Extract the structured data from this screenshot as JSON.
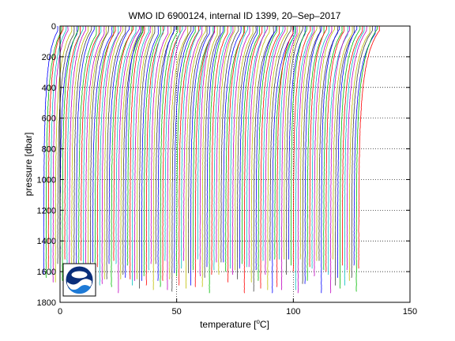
{
  "chart_data": {
    "type": "line",
    "title": "WMO ID 6900124, internal ID 1399, 20–Sep–2017",
    "xlabel_prefix": "temperature [",
    "xlabel_unit_sup": "o",
    "xlabel_suffix": "C]",
    "ylabel": "pressure [dbar]",
    "xlim": [
      0,
      150
    ],
    "ylim": [
      0,
      1800
    ],
    "y_reversed": true,
    "x_ticks": [
      0,
      50,
      100,
      150
    ],
    "y_ticks": [
      0,
      200,
      400,
      600,
      800,
      1000,
      1200,
      1400,
      1600,
      1800
    ],
    "grid": true,
    "profile_count": 136,
    "profile_spacing_degC": 1.0,
    "segment_breaks": [
      1,
      36,
      67,
      101
    ],
    "deep_temperature_degC": 2.0,
    "surface_temperature_range_degC": [
      8.0,
      10.5
    ],
    "profile_colors": [
      "#0000ff",
      "#00bb00",
      "#ff0000",
      "#00bfbf",
      "#bf00bf",
      "#bfbf00",
      "#404040"
    ],
    "logo": "noaa-logo"
  }
}
